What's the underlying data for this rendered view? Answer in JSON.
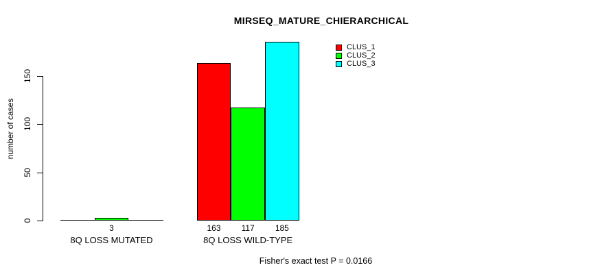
{
  "title": "MIRSEQ_MATURE_CHIERARCHICAL",
  "footer": "Fisher's exact test P = 0.0166",
  "chart_data": {
    "type": "bar",
    "title": "MIRSEQ_MATURE_CHIERARCHICAL",
    "xlabel": "",
    "ylabel": "number of cases",
    "categories": [
      "8Q LOSS MUTATED",
      "8Q LOSS WILD-TYPE"
    ],
    "series": [
      {
        "name": "CLUS_1",
        "color": "#ff0000",
        "values": [
          0,
          163
        ]
      },
      {
        "name": "CLUS_2",
        "color": "#00ff00",
        "values": [
          3,
          117
        ]
      },
      {
        "name": "CLUS_3",
        "color": "#00ffff",
        "values": [
          0,
          185
        ]
      }
    ],
    "value_labels_shown": [
      "3",
      "163",
      "117",
      "185"
    ],
    "yticks": [
      0,
      50,
      100,
      150
    ],
    "ylim": [
      0,
      185
    ],
    "grid": false,
    "legend_position": "top-right",
    "annotation": "Fisher's exact test P = 0.0166",
    "background_color": "#ffffff",
    "text_color": "#000000"
  }
}
